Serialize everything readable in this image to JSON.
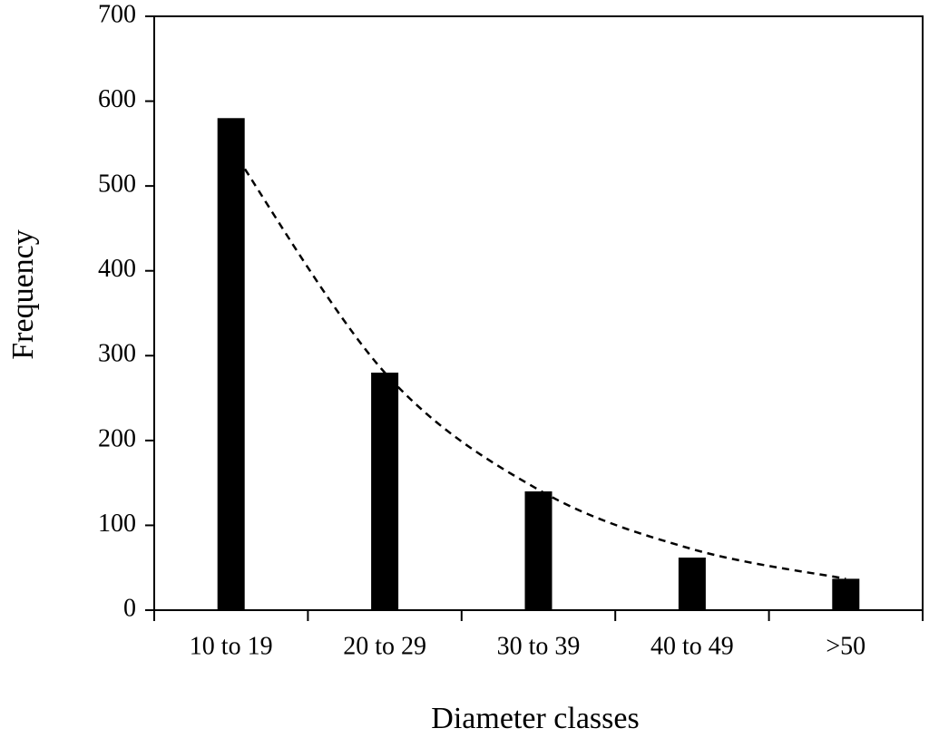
{
  "chart_data": {
    "type": "bar",
    "x_label": "Diameter classes",
    "y_label": "Frequency",
    "categories": [
      "10 to 19",
      "20 to 29",
      "30 to 39",
      "40 to 49",
      ">50"
    ],
    "values": [
      580,
      280,
      140,
      62,
      37
    ],
    "color": "#000000",
    "trend_values": [
      545,
      280,
      142,
      72,
      37
    ],
    "trend_color": "#000000",
    "trend_dashed": true,
    "ylim": [
      0,
      700
    ],
    "yticks": [
      0,
      100,
      200,
      300,
      400,
      500,
      600,
      700
    ],
    "grid": false
  }
}
